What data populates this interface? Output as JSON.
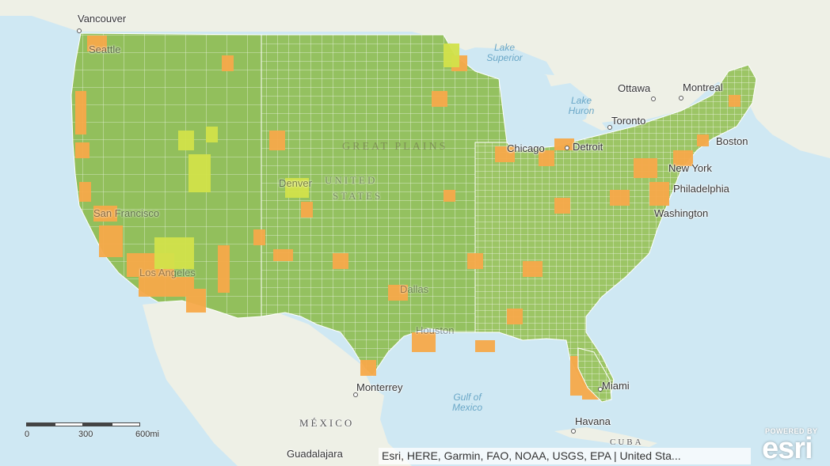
{
  "map": {
    "colors": {
      "water": "#cfe8f3",
      "land": "#f2f0ea",
      "counties_base": "#94c160",
      "county_lines": "#ffffff",
      "highlight_orange": "#f7a94a",
      "highlight_yellow": "#d2e24a",
      "highlight_dark": "#6e8f32"
    },
    "labels": {
      "vancouver": "Vancouver",
      "seattle": "Seattle",
      "ottawa": "Ottawa",
      "montreal": "Montreal",
      "toronto": "Toronto",
      "boston": "Boston",
      "new_york": "New York",
      "philadelphia": "Philadelphia",
      "washington": "Washington",
      "chicago": "Chicago",
      "detroit": "Detroit",
      "denver": "Denver",
      "san_francisco": "San Francisco",
      "los_angeles": "Los Angeles",
      "dallas": "Dallas",
      "houston": "Houston",
      "miami": "Miami",
      "havana": "Havana",
      "monterrey": "Monterrey",
      "guadalajara": "Guadalajara",
      "mexico": "MÉXICO",
      "cuba": "CUBA",
      "united_states_line1": "UNITED",
      "united_states_line2": "STATES",
      "great_plains": "GREAT PLAINS",
      "lake_superior": "Lake\nSuperior",
      "lake_huron": "Lake\nHuron",
      "gulf_of_mexico": "Gulf of\nMexico"
    },
    "scale_bar": {
      "ticks": [
        "0",
        "300",
        "600mi"
      ]
    },
    "attribution": "Esri, HERE, Garmin, FAO, NOAA, USGS, EPA | United Sta...",
    "logo": {
      "powered": "POWERED BY",
      "brand": "esri"
    }
  }
}
